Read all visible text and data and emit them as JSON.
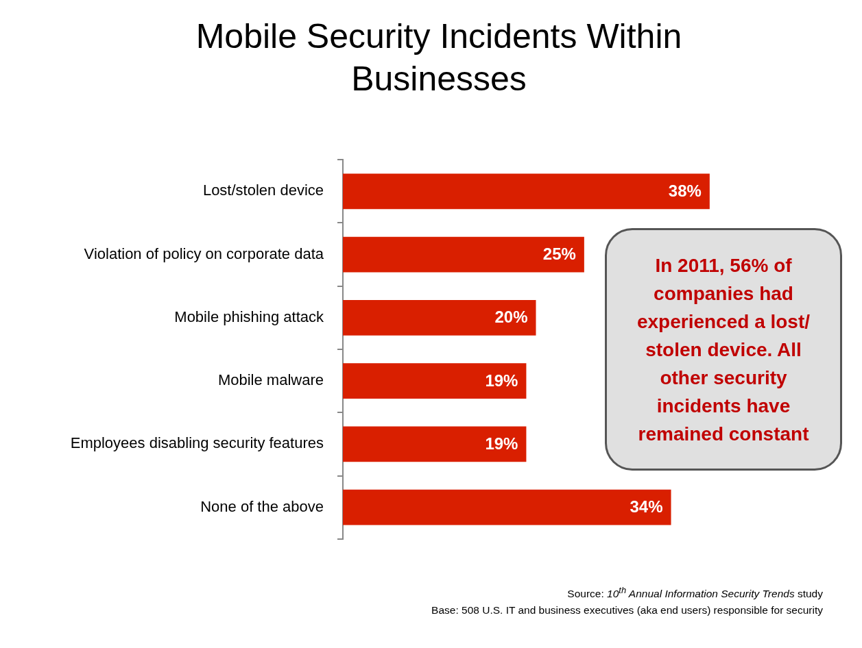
{
  "chart_data": {
    "type": "bar",
    "orientation": "horizontal",
    "title": "Mobile Security Incidents Within Businesses",
    "categories": [
      "Lost/stolen device",
      "Violation of policy on corporate data",
      "Mobile phishing attack",
      "Mobile malware",
      "Employees disabling security features",
      "None of the above"
    ],
    "values": [
      38,
      25,
      20,
      19,
      19,
      34
    ],
    "value_labels": [
      "38%",
      "25%",
      "20%",
      "19%",
      "19%",
      "34%"
    ],
    "color": "#d91f00",
    "tick_labels": "y",
    "grid": false,
    "legend": false,
    "annotations": [
      "In 2011, 56% of companies had experienced a lost/ stolen device. All other security incidents have remained constant",
      "Source: 10$^{th}$ Annual Information Security Trends study",
      "Base: 508 U.S. IT and business executives (aka end users) responsible for security"
    ]
  }
}
